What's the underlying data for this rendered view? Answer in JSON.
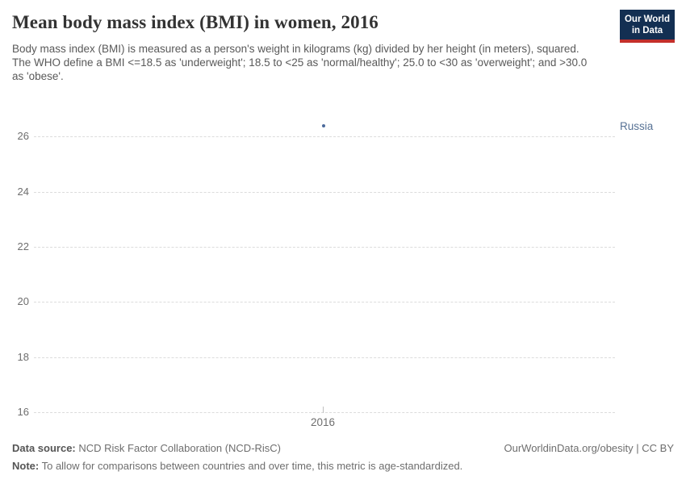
{
  "header": {
    "title": "Mean body mass index (BMI) in women, 2016",
    "subtitle": "Body mass index (BMI) is measured as a person's weight in kilograms (kg) divided by her height (in meters), squared. The WHO define a BMI <=18.5 as 'underweight'; 18.5 to <25 as 'normal/healthy'; 25.0 to <30 as 'overweight'; and >30.0 as 'obese'.",
    "logo": {
      "line1": "Our World",
      "line2": "in Data",
      "background_color": "#132f52",
      "stripe_color": "#c4302b"
    }
  },
  "chart_data": {
    "type": "scatter",
    "title": "Mean body mass index (BMI) in women, 2016",
    "ylim": [
      16,
      26.8
    ],
    "y_ticks": [
      16,
      18,
      20,
      22,
      24,
      26
    ],
    "x_ticks": [
      "2016"
    ],
    "grid": "horizontal dashed, on",
    "legend_position": "right edge entity label",
    "series": [
      {
        "name": "Russia",
        "color": "#4c6a9c",
        "label_color": "#577295",
        "points": [
          {
            "x": 2016,
            "y": 26.4
          }
        ]
      }
    ]
  },
  "footer": {
    "source_label": "Data source:",
    "source_text": " NCD Risk Factor Collaboration (NCD-RisC)",
    "rights": "OurWorldinData.org/obesity | CC BY",
    "note_label": "Note:",
    "note_text": " To allow for comparisons between countries and over time, this metric is age-standardized."
  }
}
